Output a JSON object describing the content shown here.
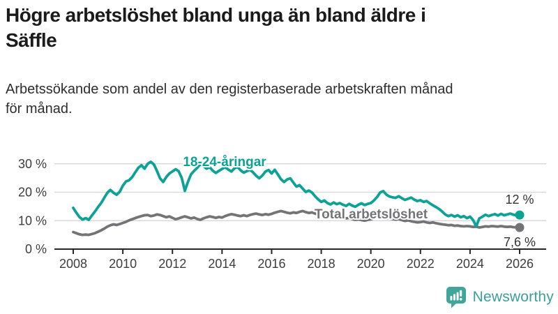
{
  "header": {
    "title": "Högre arbetslöshet bland unga än bland äldre i\nSäffle",
    "subtitle": "Arbetssökande som andel av den registerbaserade arbetskraften månad\nför månad."
  },
  "chart_data": {
    "type": "line",
    "title": "Högre arbetslöshet bland unga än bland äldre i Säffle",
    "subtitle": "Arbetssökande som andel av den registerbaserade arbetskraften månad för månad.",
    "xlabel": "",
    "ylabel": "",
    "unit": "%",
    "xlim": [
      2007.2,
      2027.1
    ],
    "ylim": [
      0,
      34
    ],
    "grid": "horizontal",
    "series_label_placement": "inline",
    "colors": {
      "grid": "#d9d9d9",
      "axis": "#262626",
      "tick_text": "#3d3d3d",
      "value_text": "#333333"
    },
    "yticks": [
      {
        "value": 0,
        "label": "0 %"
      },
      {
        "value": 10,
        "label": "10 %"
      },
      {
        "value": 20,
        "label": "20 %"
      },
      {
        "value": 30,
        "label": "30 %"
      }
    ],
    "xticks": [
      {
        "value": 2008,
        "label": "2008"
      },
      {
        "value": 2010,
        "label": "2010"
      },
      {
        "value": 2012,
        "label": "2012"
      },
      {
        "value": 2014,
        "label": "2014"
      },
      {
        "value": 2016,
        "label": "2016"
      },
      {
        "value": 2018,
        "label": "2018"
      },
      {
        "value": 2020,
        "label": "2020"
      },
      {
        "value": 2022,
        "label": "2022"
      },
      {
        "value": 2024,
        "label": "2024"
      },
      {
        "value": 2026,
        "label": "2026"
      }
    ],
    "series": [
      {
        "id": "total-arbetsloshet",
        "name": "Total arbetslöshet",
        "color": "#747477",
        "end_label": "7,6 %",
        "end_value": 7.6,
        "x_start": 2008,
        "x_step": 0.125,
        "values": [
          6.0,
          5.6,
          5.2,
          5.0,
          5.1,
          5.0,
          5.3,
          5.6,
          6.1,
          6.6,
          7.2,
          7.9,
          8.4,
          8.7,
          8.5,
          8.8,
          9.2,
          9.6,
          10.1,
          10.5,
          10.9,
          11.3,
          11.6,
          11.9,
          12.0,
          11.6,
          11.8,
          12.2,
          12.0,
          11.6,
          11.2,
          11.5,
          11.0,
          10.5,
          10.8,
          11.2,
          11.5,
          11.2,
          10.8,
          11.1,
          10.6,
          10.3,
          10.8,
          11.2,
          11.5,
          11.3,
          11.0,
          11.3,
          11.1,
          11.6,
          12.0,
          12.3,
          12.1,
          11.8,
          11.6,
          11.9,
          11.6,
          12.0,
          12.3,
          12.5,
          12.2,
          12.0,
          12.3,
          12.1,
          12.4,
          12.8,
          13.1,
          13.4,
          13.1,
          12.8,
          12.6,
          12.9,
          12.7,
          13.1,
          13.4,
          13.0,
          12.7,
          12.9,
          12.5,
          12.2,
          12.0,
          12.2,
          11.8,
          11.5,
          11.7,
          11.3,
          11.0,
          11.2,
          10.8,
          11.0,
          10.6,
          10.3,
          10.5,
          10.2,
          10.0,
          10.3,
          10.5,
          10.9,
          11.3,
          11.6,
          11.3,
          11.0,
          10.8,
          10.6,
          10.4,
          10.6,
          10.2,
          9.9,
          10.1,
          9.8,
          9.6,
          9.4,
          9.5,
          9.7,
          9.4,
          9.2,
          9.4,
          9.1,
          8.9,
          8.7,
          8.6,
          8.4,
          8.5,
          8.2,
          8.3,
          8.1,
          8.0,
          8.1,
          8.0,
          7.8,
          7.9,
          7.6,
          7.8,
          8.0,
          7.9,
          8.1,
          8.0,
          7.9,
          8.1,
          7.9,
          7.8,
          7.9,
          7.7,
          7.7,
          7.6
        ]
      },
      {
        "id": "18-24-aringar",
        "name": "18-24-åringar",
        "color": "#0ca295",
        "end_label": "12 %",
        "end_value": 12,
        "x_start": 2008,
        "x_step": 0.125,
        "values": [
          14.5,
          12.8,
          11.3,
          10.4,
          10.9,
          10.3,
          11.8,
          13.2,
          14.8,
          16.2,
          18.0,
          19.8,
          20.8,
          19.8,
          19.1,
          20.2,
          22.3,
          23.8,
          24.2,
          25.3,
          27.0,
          28.6,
          29.5,
          28.3,
          30.0,
          30.7,
          29.8,
          27.5,
          24.9,
          23.6,
          25.3,
          26.6,
          27.3,
          28.1,
          27.4,
          25.0,
          20.5,
          23.6,
          26.3,
          27.5,
          28.6,
          29.9,
          29.2,
          28.3,
          28.8,
          27.6,
          26.8,
          27.5,
          28.2,
          28.8,
          28.0,
          27.3,
          28.4,
          28.9,
          27.7,
          26.9,
          27.4,
          27.9,
          27.0,
          25.8,
          24.9,
          25.9,
          27.3,
          27.8,
          26.6,
          27.9,
          26.3,
          24.6,
          23.6,
          24.5,
          24.9,
          23.4,
          22.0,
          22.5,
          21.3,
          20.1,
          20.6,
          19.9,
          18.6,
          17.5,
          16.6,
          17.1,
          16.2,
          15.7,
          16.4,
          15.8,
          16.2,
          15.6,
          15.2,
          15.9,
          15.3,
          14.9,
          15.6,
          16.1,
          15.5,
          15.9,
          16.2,
          17.1,
          18.3,
          19.9,
          20.4,
          19.2,
          18.5,
          18.2,
          18.0,
          18.6,
          17.9,
          17.3,
          17.7,
          18.1,
          17.4,
          16.9,
          17.2,
          16.6,
          16.9,
          16.1,
          15.4,
          14.8,
          14.1,
          13.2,
          12.2,
          11.6,
          12.0,
          11.4,
          11.9,
          11.2,
          11.6,
          10.9,
          11.4,
          10.2,
          8.0,
          10.8,
          11.4,
          12.1,
          11.6,
          12.0,
          12.3,
          11.8,
          12.4,
          11.9,
          12.2,
          12.5,
          12.1,
          11.9,
          12.0
        ]
      }
    ]
  },
  "footer": {
    "brand": "Newsworthy",
    "brand_color": "#3aa098",
    "logo_icon": "newsworthy-chart-bubble-icon",
    "logo_color": "#40a69c"
  }
}
